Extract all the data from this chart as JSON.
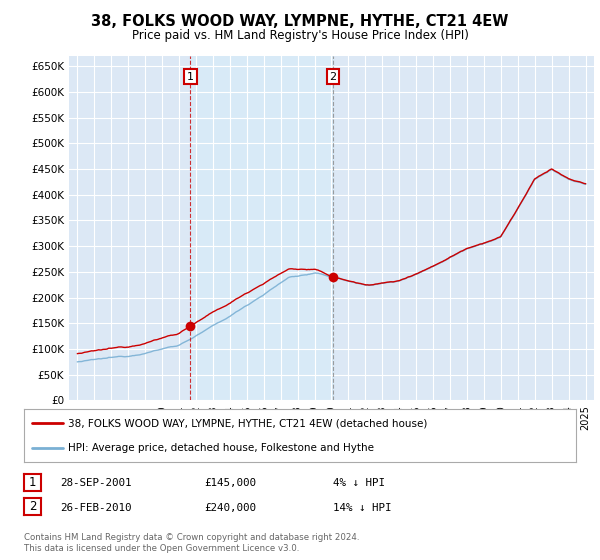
{
  "title": "38, FOLKS WOOD WAY, LYMPNE, HYTHE, CT21 4EW",
  "subtitle": "Price paid vs. HM Land Registry's House Price Index (HPI)",
  "ylabel_ticks": [
    "£0",
    "£50K",
    "£100K",
    "£150K",
    "£200K",
    "£250K",
    "£300K",
    "£350K",
    "£400K",
    "£450K",
    "£500K",
    "£550K",
    "£600K",
    "£650K"
  ],
  "ytick_values": [
    0,
    50000,
    100000,
    150000,
    200000,
    250000,
    300000,
    350000,
    400000,
    450000,
    500000,
    550000,
    600000,
    650000
  ],
  "hpi_color": "#7ab0d4",
  "price_color": "#cc0000",
  "annotation1": {
    "label": "1",
    "date_str": "28-SEP-2001",
    "price": 145000,
    "pct": "4% ↓ HPI"
  },
  "annotation2": {
    "label": "2",
    "date_str": "26-FEB-2010",
    "price": 240000,
    "pct": "14% ↓ HPI"
  },
  "legend_line1": "38, FOLKS WOOD WAY, LYMPNE, HYTHE, CT21 4EW (detached house)",
  "legend_line2": "HPI: Average price, detached house, Folkestone and Hythe",
  "footnote": "Contains HM Land Registry data © Crown copyright and database right 2024.\nThis data is licensed under the Open Government Licence v3.0.",
  "bg_color": "#ffffff",
  "plot_bg_color": "#dce8f5",
  "shade_color": "#d0e4f5",
  "grid_color": "#ffffff"
}
